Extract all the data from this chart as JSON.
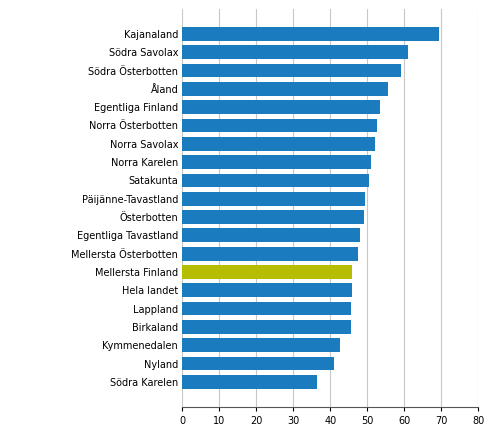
{
  "categories": [
    "Södra Karelen",
    "Nyland",
    "Kymmenedalen",
    "Birkaland",
    "Lappland",
    "Hela landet",
    "Mellersta Finland",
    "Mellersta Österbotten",
    "Egentliga Tavastland",
    "Österbotten",
    "Päijänne-Tavastland",
    "Satakunta",
    "Norra Karelen",
    "Norra Savolax",
    "Norra Österbotten",
    "Egentliga Finland",
    "Åland",
    "Södra Österbotten",
    "Södra Savolax",
    "Kajanaland"
  ],
  "values": [
    36.5,
    41.0,
    42.5,
    45.5,
    45.5,
    46.0,
    46.0,
    47.5,
    48.0,
    49.0,
    49.5,
    50.5,
    51.0,
    52.0,
    52.5,
    53.5,
    55.5,
    59.0,
    61.0,
    69.5
  ],
  "bar_color_default": "#1b7bbf",
  "bar_color_highlight": "#b5be00",
  "highlight_index": 6,
  "xlim": [
    0,
    80
  ],
  "xticks": [
    0,
    10,
    20,
    30,
    40,
    50,
    60,
    70,
    80
  ],
  "grid_color": "#c8c8c8",
  "background_color": "#ffffff",
  "bar_height": 0.75,
  "label_fontsize": 7,
  "tick_fontsize": 7
}
